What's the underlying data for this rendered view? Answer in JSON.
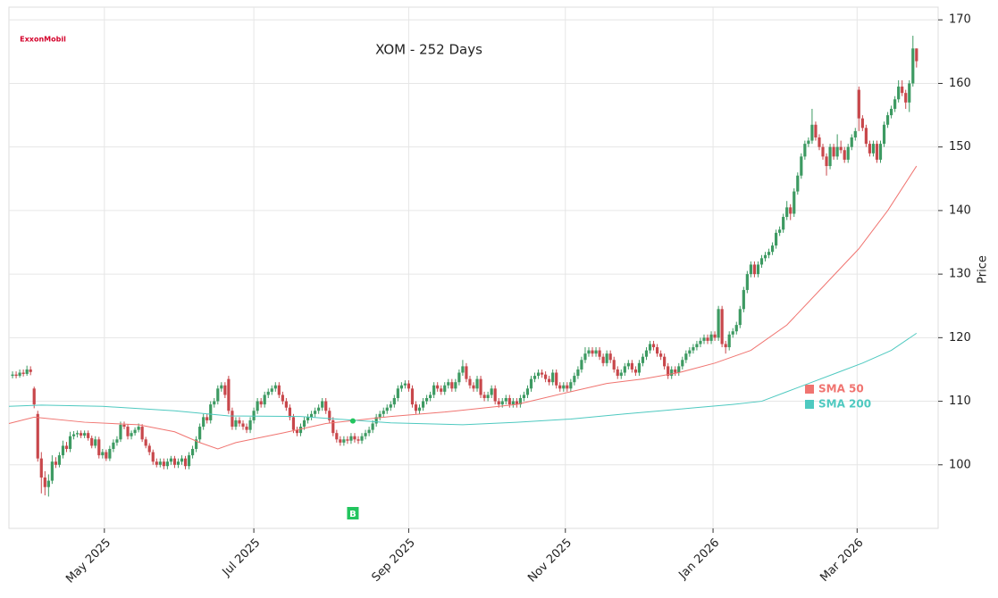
{
  "chart_data": {
    "type": "candlestick",
    "title": "XOM - 252 Days",
    "logo": "ExxonMobil",
    "y_label": "Price",
    "xlim": [
      -1,
      257
    ],
    "ylim": [
      90,
      172
    ],
    "yticks": [
      100,
      110,
      120,
      130,
      140,
      150,
      160,
      170
    ],
    "grid": true,
    "xticks": [
      {
        "value": 25.5,
        "label": "May 2025"
      },
      {
        "value": 67,
        "label": "Jul 2025"
      },
      {
        "value": 110,
        "label": "Sep 2025"
      },
      {
        "value": 153.5,
        "label": "Nov 2025"
      },
      {
        "value": 194.5,
        "label": "Jan 2026"
      },
      {
        "value": 234.5,
        "label": "Mar 2026"
      }
    ],
    "candles": {
      "up_color": "#3d9a62",
      "down_color": "#c8474b",
      "open": [
        114.0,
        114.2,
        114.0,
        114.5,
        114.3,
        115.0,
        112.0,
        108.0,
        101.0,
        98.0,
        96.5,
        97.5,
        100.5,
        100.0,
        101.5,
        103.0,
        102.5,
        104.5,
        104.8,
        105.0,
        104.6,
        105.0,
        104.2,
        103.0,
        104.0,
        101.5,
        102.0,
        101.0,
        102.5,
        103.5,
        104.0,
        106.3,
        106.0,
        104.5,
        105.0,
        105.5,
        106.0,
        104.0,
        103.0,
        102.0,
        100.5,
        100.0,
        100.5,
        99.8,
        100.5,
        101.0,
        100.0,
        100.5,
        101.0,
        99.8,
        101.5,
        102.5,
        104.0,
        106.0,
        107.5,
        107.0,
        109.5,
        110.0,
        112.0,
        112.5,
        113.5,
        108.5,
        106.0,
        107.0,
        106.5,
        106.0,
        105.5,
        107.0,
        108.5,
        110.0,
        109.5,
        111.0,
        111.5,
        112.0,
        112.5,
        111.0,
        110.0,
        109.0,
        107.5,
        105.5,
        105.0,
        106.0,
        107.0,
        107.5,
        108.0,
        108.5,
        109.0,
        110.0,
        108.5,
        107.0,
        105.0,
        104.0,
        103.5,
        104.0,
        103.8,
        104.5,
        104.0,
        103.8,
        104.5,
        105.0,
        105.5,
        106.5,
        107.5,
        108.0,
        108.5,
        109.0,
        109.5,
        110.5,
        112.0,
        112.5,
        112.8,
        112.0,
        109.5,
        108.5,
        109.0,
        110.0,
        110.5,
        111.0,
        112.5,
        112.0,
        111.5,
        112.5,
        113.0,
        112.0,
        113.0,
        114.5,
        115.5,
        113.5,
        112.5,
        112.0,
        113.5,
        111.0,
        110.5,
        111.0,
        112.0,
        110.0,
        109.5,
        110.0,
        110.5,
        109.5,
        110.0,
        109.5,
        110.5,
        111.0,
        112.0,
        113.5,
        114.0,
        114.5,
        114.2,
        113.5,
        113.0,
        114.5,
        112.5,
        112.0,
        112.5,
        112.0,
        113.0,
        114.0,
        115.0,
        116.5,
        117.5,
        118.0,
        117.5,
        118.0,
        117.0,
        116.0,
        117.5,
        116.5,
        115.0,
        114.0,
        114.5,
        115.5,
        116.0,
        115.0,
        114.5,
        116.0,
        117.0,
        118.0,
        119.0,
        118.5,
        117.5,
        117.0,
        115.5,
        114.0,
        115.0,
        114.5,
        115.5,
        116.5,
        117.5,
        118.0,
        118.5,
        119.0,
        119.5,
        120.0,
        119.5,
        120.5,
        120.0,
        124.5,
        119.0,
        118.5,
        120.5,
        121.0,
        122.0,
        124.5,
        127.5,
        130.0,
        131.5,
        130.0,
        131.5,
        132.5,
        133.0,
        133.5,
        134.5,
        136.5,
        137.0,
        139.0,
        140.5,
        139.5,
        143.0,
        145.5,
        148.5,
        150.5,
        151.0,
        153.5,
        151.5,
        150.0,
        148.5,
        147.0,
        150.0,
        148.5,
        150.0,
        149.5,
        148.0,
        150.0,
        151.5,
        159.0,
        154.5,
        153.0,
        150.5,
        149.0,
        150.5,
        148.0,
        150.5,
        153.5,
        155.0,
        156.0,
        157.5,
        159.5,
        158.5,
        157.0,
        160.0,
        165.5
      ],
      "high": [
        114.7,
        114.7,
        115.0,
        115.0,
        115.6,
        115.5,
        112.3,
        108.5,
        102.0,
        99.0,
        98.5,
        101.5,
        101.2,
        102.0,
        103.8,
        103.6,
        105.2,
        105.3,
        105.4,
        105.4,
        105.4,
        105.4,
        104.6,
        104.5,
        104.4,
        102.5,
        102.4,
        103.0,
        104.0,
        104.5,
        106.8,
        106.8,
        106.4,
        105.4,
        105.9,
        106.5,
        106.4,
        104.4,
        103.4,
        102.4,
        101.0,
        101.0,
        101.0,
        101.0,
        101.4,
        101.4,
        101.0,
        101.5,
        101.4,
        102.0,
        103.0,
        104.5,
        106.5,
        108.0,
        108.0,
        110.0,
        110.5,
        112.5,
        113.0,
        113.0,
        114.0,
        109.0,
        107.5,
        107.5,
        107.0,
        106.5,
        107.5,
        109.0,
        110.5,
        110.5,
        111.5,
        112.0,
        112.5,
        113.0,
        113.0,
        111.5,
        110.5,
        109.5,
        108.0,
        106.0,
        106.5,
        107.5,
        108.0,
        108.5,
        109.0,
        109.5,
        110.5,
        110.5,
        109.0,
        107.5,
        105.5,
        104.5,
        104.5,
        104.5,
        105.0,
        105.0,
        104.5,
        105.0,
        105.5,
        106.0,
        107.0,
        108.0,
        108.5,
        109.0,
        109.5,
        110.0,
        111.0,
        112.5,
        113.0,
        113.3,
        113.3,
        112.5,
        110.0,
        109.5,
        110.5,
        111.0,
        111.5,
        113.0,
        113.0,
        112.5,
        113.0,
        113.5,
        113.5,
        113.5,
        115.0,
        116.5,
        116.0,
        114.0,
        113.0,
        114.0,
        114.0,
        111.5,
        111.5,
        112.5,
        112.5,
        110.5,
        110.5,
        111.0,
        111.0,
        110.5,
        110.5,
        111.0,
        111.5,
        112.5,
        114.0,
        114.5,
        115.0,
        115.0,
        114.7,
        114.0,
        115.0,
        115.0,
        113.0,
        113.0,
        113.0,
        113.5,
        114.5,
        115.5,
        117.0,
        118.5,
        118.5,
        118.5,
        118.5,
        118.5,
        117.5,
        118.0,
        118.0,
        117.0,
        115.5,
        115.0,
        116.0,
        116.5,
        116.5,
        115.5,
        116.5,
        117.5,
        118.5,
        119.5,
        119.5,
        119.0,
        118.0,
        117.5,
        116.0,
        115.5,
        115.5,
        116.0,
        117.0,
        118.0,
        118.5,
        119.0,
        119.5,
        120.0,
        120.5,
        120.5,
        121.0,
        121.0,
        125.0,
        125.0,
        119.5,
        121.0,
        121.5,
        122.5,
        125.0,
        128.0,
        130.5,
        132.0,
        132.0,
        132.0,
        133.0,
        133.5,
        134.0,
        135.0,
        137.0,
        137.5,
        139.5,
        141.5,
        141.0,
        143.5,
        146.0,
        149.0,
        151.0,
        151.5,
        156.0,
        154.0,
        152.0,
        150.5,
        149.0,
        150.5,
        150.5,
        152.0,
        151.0,
        150.0,
        150.5,
        152.0,
        153.0,
        159.5,
        155.0,
        153.5,
        151.0,
        151.0,
        151.0,
        151.0,
        154.0,
        155.5,
        156.5,
        158.0,
        160.5,
        160.5,
        159.0,
        160.5,
        167.5,
        165.5
      ],
      "low": [
        113.6,
        113.6,
        113.7,
        113.9,
        114.0,
        114.1,
        108.9,
        100.5,
        95.5,
        95.2,
        95.0,
        97.0,
        99.5,
        99.6,
        101.0,
        102.0,
        102.0,
        104.0,
        104.3,
        104.2,
        104.2,
        103.8,
        102.6,
        102.6,
        101.0,
        101.0,
        100.6,
        100.6,
        102.0,
        103.0,
        103.6,
        105.6,
        104.0,
        104.0,
        104.6,
        105.1,
        103.6,
        102.6,
        101.5,
        100.0,
        99.6,
        99.6,
        99.3,
        99.3,
        100.0,
        99.5,
        99.5,
        100.0,
        99.3,
        99.3,
        101.0,
        102.0,
        103.5,
        105.5,
        106.5,
        106.5,
        109.0,
        109.5,
        111.5,
        110.5,
        108.0,
        105.5,
        105.5,
        106.0,
        105.5,
        105.0,
        105.0,
        106.5,
        108.0,
        109.0,
        109.0,
        110.5,
        111.0,
        111.5,
        110.5,
        109.5,
        108.5,
        107.0,
        105.0,
        104.5,
        104.5,
        105.5,
        106.5,
        107.0,
        107.5,
        108.0,
        108.5,
        108.0,
        106.5,
        104.5,
        103.5,
        103.0,
        103.0,
        103.3,
        103.3,
        103.5,
        103.3,
        103.3,
        104.0,
        104.5,
        105.0,
        106.0,
        107.0,
        107.5,
        108.0,
        108.5,
        109.0,
        110.0,
        111.5,
        112.0,
        111.5,
        109.0,
        108.0,
        108.0,
        108.5,
        109.5,
        110.0,
        110.5,
        111.5,
        111.0,
        111.0,
        112.0,
        111.5,
        111.5,
        112.5,
        114.0,
        113.0,
        112.0,
        111.5,
        111.5,
        110.5,
        110.0,
        110.0,
        110.5,
        109.5,
        109.0,
        109.0,
        109.5,
        109.0,
        109.0,
        109.0,
        109.0,
        110.0,
        110.5,
        111.5,
        113.0,
        113.5,
        113.7,
        113.0,
        112.5,
        112.5,
        112.0,
        111.5,
        111.5,
        111.5,
        111.5,
        112.5,
        113.5,
        114.5,
        116.0,
        117.0,
        117.0,
        117.0,
        116.5,
        115.5,
        115.5,
        116.0,
        114.5,
        113.5,
        113.5,
        114.0,
        115.0,
        114.5,
        114.0,
        114.0,
        115.5,
        116.5,
        117.5,
        118.0,
        117.0,
        116.5,
        115.0,
        113.5,
        113.5,
        114.0,
        114.0,
        115.0,
        116.0,
        117.0,
        117.5,
        118.0,
        118.5,
        119.0,
        119.0,
        119.0,
        119.5,
        119.5,
        118.5,
        117.5,
        118.0,
        120.0,
        120.5,
        121.5,
        124.0,
        127.0,
        129.5,
        129.5,
        129.5,
        131.0,
        132.0,
        132.5,
        133.0,
        134.0,
        136.0,
        136.5,
        138.5,
        138.5,
        139.0,
        142.5,
        145.0,
        148.0,
        150.0,
        150.5,
        151.0,
        149.5,
        148.0,
        145.5,
        146.5,
        148.0,
        148.0,
        149.0,
        147.5,
        147.5,
        149.5,
        151.0,
        152.5,
        152.5,
        150.0,
        148.5,
        148.5,
        147.5,
        147.5,
        150.0,
        153.0,
        154.5,
        155.5,
        157.0,
        158.0,
        156.0,
        155.5,
        159.5,
        162.5
      ],
      "close": [
        114.2,
        114.0,
        114.5,
        114.3,
        115.0,
        114.6,
        109.5,
        101.0,
        98.0,
        96.5,
        97.5,
        100.5,
        100.0,
        101.5,
        103.0,
        102.5,
        104.5,
        104.8,
        105.0,
        104.6,
        105.0,
        104.2,
        103.0,
        104.0,
        101.5,
        102.0,
        101.0,
        102.5,
        103.5,
        104.0,
        106.3,
        106.0,
        104.5,
        105.0,
        105.5,
        106.0,
        104.0,
        103.0,
        102.0,
        100.5,
        100.0,
        100.5,
        99.8,
        100.5,
        101.0,
        100.0,
        100.5,
        101.0,
        99.8,
        101.5,
        102.5,
        104.0,
        106.0,
        107.5,
        107.0,
        109.5,
        110.0,
        112.0,
        112.5,
        111.0,
        108.5,
        106.0,
        107.0,
        106.5,
        106.0,
        105.5,
        107.0,
        108.5,
        110.0,
        109.5,
        111.0,
        111.5,
        112.0,
        112.5,
        111.0,
        110.0,
        109.0,
        107.5,
        105.5,
        105.0,
        106.0,
        107.0,
        107.5,
        108.0,
        108.5,
        109.0,
        110.0,
        108.5,
        107.0,
        105.0,
        104.0,
        103.5,
        104.0,
        103.8,
        104.5,
        104.0,
        103.8,
        104.5,
        105.0,
        105.5,
        106.5,
        107.5,
        108.0,
        108.5,
        109.0,
        109.5,
        110.5,
        112.0,
        112.5,
        112.8,
        112.0,
        109.5,
        108.5,
        109.0,
        110.0,
        110.5,
        111.0,
        112.5,
        112.0,
        111.5,
        112.5,
        113.0,
        112.0,
        113.0,
        114.5,
        115.5,
        113.5,
        112.5,
        112.0,
        113.5,
        111.0,
        110.5,
        111.0,
        112.0,
        110.0,
        109.5,
        110.0,
        110.5,
        109.5,
        110.0,
        109.5,
        110.5,
        111.0,
        112.0,
        113.5,
        114.0,
        114.5,
        114.2,
        113.5,
        113.0,
        114.5,
        112.5,
        112.0,
        112.5,
        112.0,
        113.0,
        114.0,
        115.0,
        116.5,
        117.5,
        118.0,
        117.5,
        118.0,
        117.0,
        116.0,
        117.5,
        116.5,
        115.0,
        114.0,
        114.5,
        115.5,
        116.0,
        115.0,
        114.5,
        116.0,
        117.0,
        118.0,
        119.0,
        118.5,
        117.5,
        117.0,
        115.5,
        114.0,
        115.0,
        114.5,
        115.5,
        116.5,
        117.5,
        118.0,
        118.5,
        119.0,
        119.5,
        120.0,
        119.5,
        120.5,
        120.0,
        124.5,
        119.0,
        118.5,
        120.5,
        121.0,
        122.0,
        124.5,
        127.5,
        130.0,
        131.5,
        130.0,
        131.5,
        132.5,
        133.0,
        133.5,
        134.5,
        136.5,
        137.0,
        139.0,
        140.5,
        139.5,
        143.0,
        145.5,
        148.5,
        150.5,
        151.0,
        153.5,
        151.5,
        150.0,
        148.5,
        147.0,
        150.0,
        148.5,
        150.0,
        149.5,
        148.0,
        150.0,
        151.5,
        152.5,
        154.5,
        153.0,
        150.5,
        149.0,
        150.5,
        148.0,
        150.5,
        153.5,
        155.0,
        156.0,
        157.5,
        159.5,
        158.5,
        157.0,
        160.0,
        165.5,
        163.5
      ]
    },
    "series": [
      {
        "name": "SMA 50",
        "color": "#f07470",
        "x": [
          -1,
          6,
          20,
          35,
          45,
          52,
          57,
          62,
          68,
          75,
          87,
          105,
          120,
          140,
          155,
          165,
          175,
          185,
          195,
          205,
          215,
          225,
          235,
          243,
          251
        ],
        "values": [
          106.5,
          107.5,
          106.7,
          106.3,
          105.2,
          103.5,
          102.5,
          103.5,
          104.2,
          105.0,
          106.5,
          107.6,
          108.3,
          109.5,
          111.5,
          112.8,
          113.5,
          114.5,
          116.0,
          118.0,
          122.0,
          128.0,
          134.0,
          140.0,
          147.0
        ]
      },
      {
        "name": "SMA 200",
        "color": "#4ec9c0",
        "x": [
          -1,
          8,
          25,
          45,
          60,
          80,
          95,
          105,
          125,
          140,
          155,
          170,
          180,
          190,
          200,
          208,
          215,
          222,
          229,
          236,
          244,
          251
        ],
        "values": [
          109.2,
          109.4,
          109.2,
          108.5,
          107.7,
          107.6,
          107.0,
          106.6,
          106.3,
          106.7,
          107.2,
          108.0,
          108.5,
          109.0,
          109.5,
          110.0,
          111.5,
          113.0,
          114.5,
          116.0,
          118.0,
          120.7
        ]
      }
    ],
    "signals": [
      {
        "label": "B",
        "x": 94.5,
        "price": 106.9,
        "color": "#22c55e"
      }
    ]
  }
}
